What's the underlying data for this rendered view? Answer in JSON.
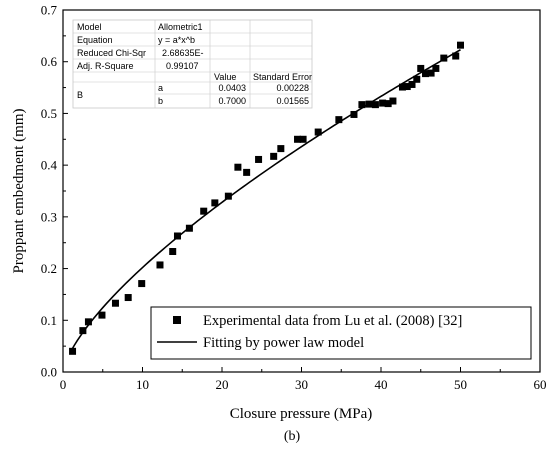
{
  "chart_data": {
    "type": "scatter",
    "xlabel": "Closure pressure (MPa)",
    "ylabel": "Proppant embedment (mm)",
    "caption": "(b)",
    "xlim": [
      0,
      60
    ],
    "ylim": [
      0,
      0.7
    ],
    "xticks": [
      0,
      10,
      20,
      30,
      40,
      50,
      60
    ],
    "yticks": [
      0.0,
      0.1,
      0.2,
      0.3,
      0.4,
      0.5,
      0.6,
      0.7
    ],
    "xtick_labels": [
      "0",
      "10",
      "20",
      "30",
      "40",
      "50",
      "60"
    ],
    "ytick_labels": [
      "0.0",
      "0.1",
      "0.2",
      "0.3",
      "0.4",
      "0.5",
      "0.6",
      "0.7"
    ],
    "grid": false,
    "legend_position": "bottom-right",
    "series": [
      {
        "name": "Experimental data from Lu et al. (2008) [32]",
        "marker": "square",
        "color": "#000000",
        "x": [
          1.2,
          2.5,
          3.2,
          4.9,
          6.6,
          8.2,
          9.9,
          12.2,
          13.8,
          14.4,
          15.9,
          17.7,
          19.1,
          20.8,
          22.0,
          23.1,
          24.6,
          26.5,
          27.4,
          29.5,
          30.2,
          32.1,
          34.7,
          36.6,
          37.6,
          38.5,
          39.3,
          40.2,
          40.9,
          41.5,
          42.7,
          43.3,
          43.9,
          44.5,
          45.0,
          45.6,
          46.3,
          46.9,
          47.9,
          49.4,
          50.0
        ],
        "y": [
          0.04,
          0.08,
          0.097,
          0.11,
          0.133,
          0.144,
          0.171,
          0.207,
          0.233,
          0.263,
          0.278,
          0.311,
          0.327,
          0.34,
          0.396,
          0.386,
          0.411,
          0.417,
          0.432,
          0.45,
          0.45,
          0.464,
          0.488,
          0.498,
          0.517,
          0.518,
          0.517,
          0.52,
          0.519,
          0.524,
          0.551,
          0.552,
          0.556,
          0.566,
          0.587,
          0.577,
          0.578,
          0.587,
          0.607,
          0.611,
          0.632
        ]
      },
      {
        "name": "Fitting by power law model",
        "type": "line",
        "color": "#000000",
        "model": "power",
        "a": 0.0403,
        "b": 0.7,
        "x_range": [
          1,
          50
        ]
      }
    ],
    "fit_table": {
      "rows": [
        [
          "Model",
          "Allometric1"
        ],
        [
          "Equation",
          "y = a*x^b"
        ],
        [
          "Reduced Chi-Sqr",
          "2.68635E-"
        ],
        [
          "Adj. R-Square",
          "0.99107"
        ]
      ],
      "param_header": [
        "Value",
        "Standard Error"
      ],
      "group_label": "B",
      "params": [
        [
          "a",
          "0.0403",
          "0.00228"
        ],
        [
          "b",
          "0.7000",
          "0.01565"
        ]
      ]
    }
  }
}
